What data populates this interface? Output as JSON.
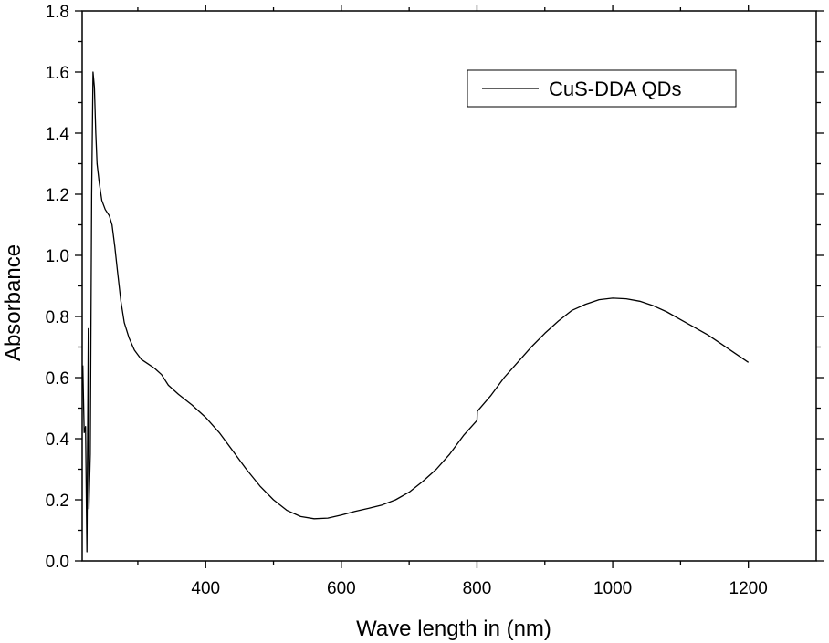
{
  "chart_data": {
    "type": "line",
    "title": "",
    "xlabel": "Wave length in (nm)",
    "ylabel": "Absorbance",
    "xlim": [
      218,
      1300
    ],
    "ylim": [
      0.0,
      1.8
    ],
    "x_ticks": [
      400,
      600,
      800,
      1000,
      1200
    ],
    "x_tick_labels": [
      "400",
      "600",
      "800",
      "1000",
      "1200"
    ],
    "y_ticks": [
      0.0,
      0.2,
      0.4,
      0.6,
      0.8,
      1.0,
      1.2,
      1.4,
      1.6,
      1.8
    ],
    "y_tick_labels": [
      "0.0",
      "0.2",
      "0.4",
      "0.6",
      "0.8",
      "1.0",
      "1.2",
      "1.4",
      "1.6",
      "1.8"
    ],
    "grid": false,
    "legend": {
      "position": "top-right",
      "entries": [
        "CuS-DDA QDs"
      ]
    },
    "series": [
      {
        "name": "CuS-DDA QDs",
        "color": "#000000",
        "points": [
          [
            219,
            0.64
          ],
          [
            221,
            0.42
          ],
          [
            223,
            0.44
          ],
          [
            225,
            0.03
          ],
          [
            227,
            0.76
          ],
          [
            228,
            0.17
          ],
          [
            230,
            0.35
          ],
          [
            232,
            1.2
          ],
          [
            234,
            1.6
          ],
          [
            236,
            1.55
          ],
          [
            238,
            1.4
          ],
          [
            240,
            1.3
          ],
          [
            243,
            1.24
          ],
          [
            247,
            1.18
          ],
          [
            252,
            1.15
          ],
          [
            258,
            1.13
          ],
          [
            262,
            1.1
          ],
          [
            266,
            1.03
          ],
          [
            270,
            0.95
          ],
          [
            275,
            0.85
          ],
          [
            280,
            0.78
          ],
          [
            287,
            0.73
          ],
          [
            295,
            0.69
          ],
          [
            305,
            0.66
          ],
          [
            315,
            0.645
          ],
          [
            325,
            0.63
          ],
          [
            335,
            0.61
          ],
          [
            345,
            0.575
          ],
          [
            360,
            0.545
          ],
          [
            380,
            0.51
          ],
          [
            400,
            0.47
          ],
          [
            420,
            0.42
          ],
          [
            440,
            0.36
          ],
          [
            460,
            0.3
          ],
          [
            480,
            0.245
          ],
          [
            500,
            0.2
          ],
          [
            520,
            0.165
          ],
          [
            540,
            0.145
          ],
          [
            560,
            0.138
          ],
          [
            580,
            0.14
          ],
          [
            600,
            0.15
          ],
          [
            620,
            0.162
          ],
          [
            640,
            0.172
          ],
          [
            660,
            0.183
          ],
          [
            680,
            0.2
          ],
          [
            700,
            0.225
          ],
          [
            720,
            0.26
          ],
          [
            740,
            0.3
          ],
          [
            760,
            0.35
          ],
          [
            780,
            0.41
          ],
          [
            800,
            0.46
          ],
          [
            800.5,
            0.49
          ],
          [
            820,
            0.54
          ],
          [
            840,
            0.6
          ],
          [
            860,
            0.65
          ],
          [
            880,
            0.7
          ],
          [
            900,
            0.745
          ],
          [
            920,
            0.785
          ],
          [
            940,
            0.82
          ],
          [
            960,
            0.84
          ],
          [
            980,
            0.855
          ],
          [
            1000,
            0.86
          ],
          [
            1020,
            0.858
          ],
          [
            1040,
            0.85
          ],
          [
            1060,
            0.835
          ],
          [
            1080,
            0.815
          ],
          [
            1100,
            0.79
          ],
          [
            1120,
            0.765
          ],
          [
            1140,
            0.74
          ],
          [
            1160,
            0.71
          ],
          [
            1180,
            0.68
          ],
          [
            1200,
            0.65
          ]
        ]
      }
    ]
  }
}
